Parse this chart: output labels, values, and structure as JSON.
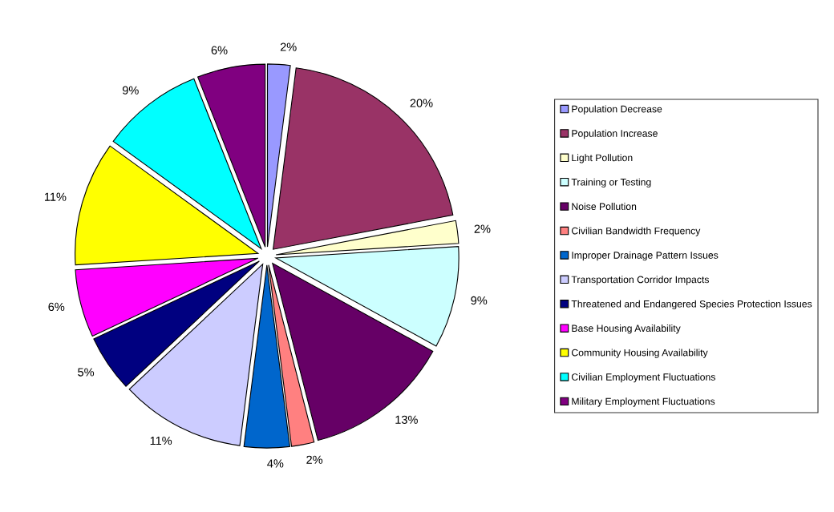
{
  "chart_data": {
    "type": "pie",
    "categories": [
      "Population Decrease",
      "Population Increase",
      "Light Pollution",
      "Training or Testing",
      "Noise Pollution",
      "Civilian Bandwidth Frequency",
      "Improper Drainage Pattern Issues",
      "Transportation Corridor Impacts",
      "Threatened and Endangered Species Protection Issues",
      "Base Housing Availability",
      "Community Housing Availability",
      "Civilian Employment Fluctuations",
      "Military Employment Fluctuations"
    ],
    "values": [
      2,
      20,
      2,
      9,
      13,
      2,
      4,
      11,
      5,
      6,
      11,
      9,
      6
    ],
    "value_labels": [
      "2%",
      "20%",
      "2%",
      "9%",
      "13%",
      "2%",
      "4%",
      "11%",
      "5%",
      "6%",
      "11%",
      "9%",
      "6%"
    ],
    "colors": [
      "#9999ff",
      "#993366",
      "#ffffcc",
      "#ccffff",
      "#660066",
      "#ff8080",
      "#0066cc",
      "#ccccff",
      "#000080",
      "#ff00ff",
      "#ffff00",
      "#00ffff",
      "#800080"
    ],
    "legend": "right"
  }
}
